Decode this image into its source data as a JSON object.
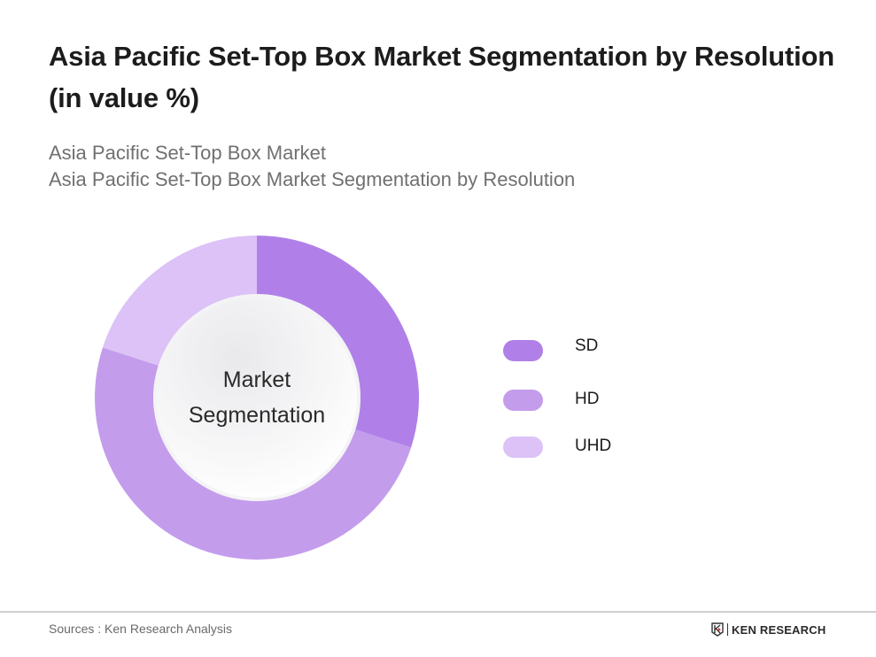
{
  "header": {
    "title": "Asia Pacific Set-Top Box Market Segmentation by Resolution (in value %)",
    "subtitle_line1": "Asia Pacific Set-Top Box Market",
    "subtitle_line2": "Asia Pacific Set-Top Box Market Segmentation by Resolution"
  },
  "chart": {
    "center_label_line1": "Market",
    "center_label_line2": "Segmentation"
  },
  "legend": {
    "items": [
      {
        "label": "SD",
        "color": "#b080e8"
      },
      {
        "label": "HD",
        "color": "#c49cec"
      },
      {
        "label": "UHD",
        "color": "#dcc2f6"
      }
    ]
  },
  "footer": {
    "source": "Sources : Ken Research Analysis",
    "logo_text": "KEN RESEARCH"
  },
  "chart_data": {
    "type": "pie",
    "subtype": "donut",
    "title": "Asia Pacific Set-Top Box Market Segmentation by Resolution (in value %)",
    "subtitle": "Asia Pacific Set-Top Box Market / Asia Pacific Set-Top Box Market Segmentation by Resolution",
    "center_label": "Market Segmentation",
    "categories": [
      "SD",
      "HD",
      "UHD"
    ],
    "values": [
      30,
      50,
      20
    ],
    "colors": [
      "#b080e8",
      "#c49cec",
      "#dcc2f6"
    ],
    "start_angle_deg": 0,
    "direction": "clockwise",
    "legend_position": "right",
    "data_labels": false,
    "source": "Sources : Ken Research Analysis"
  }
}
